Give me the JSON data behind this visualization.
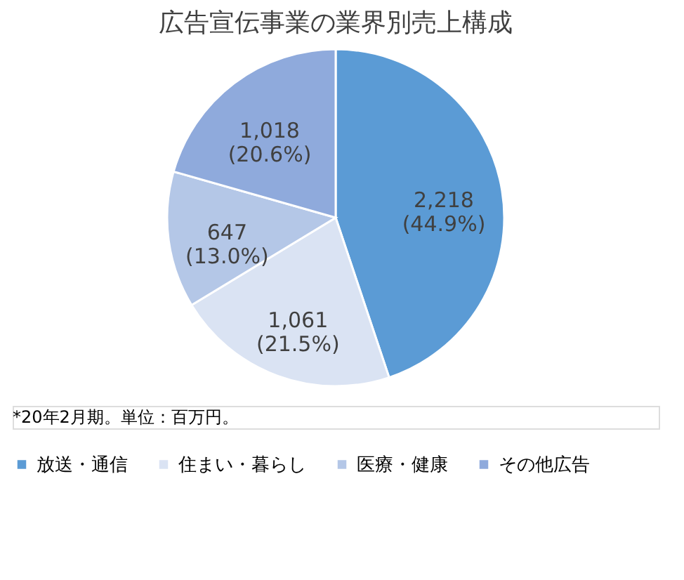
{
  "chart_data": {
    "type": "pie",
    "title": "広告宣伝事業の業界別売上構成",
    "categories": [
      "放送・通信",
      "住まい・暮らし",
      "医療・健康",
      "その他広告"
    ],
    "values": [
      2218,
      1061,
      647,
      1018
    ],
    "colors": [
      "#5b9bd5",
      "#dae3f3",
      "#b4c7e7",
      "#8faadc"
    ],
    "value_labels": [
      "2,218\n(44.9%)",
      "1,061\n(21.5%)",
      "647\n(13.0%)",
      "1,018\n(20.6%)"
    ],
    "legend": "bottom",
    "annotations": [
      "*20年2月期。単位：百万円。"
    ]
  }
}
